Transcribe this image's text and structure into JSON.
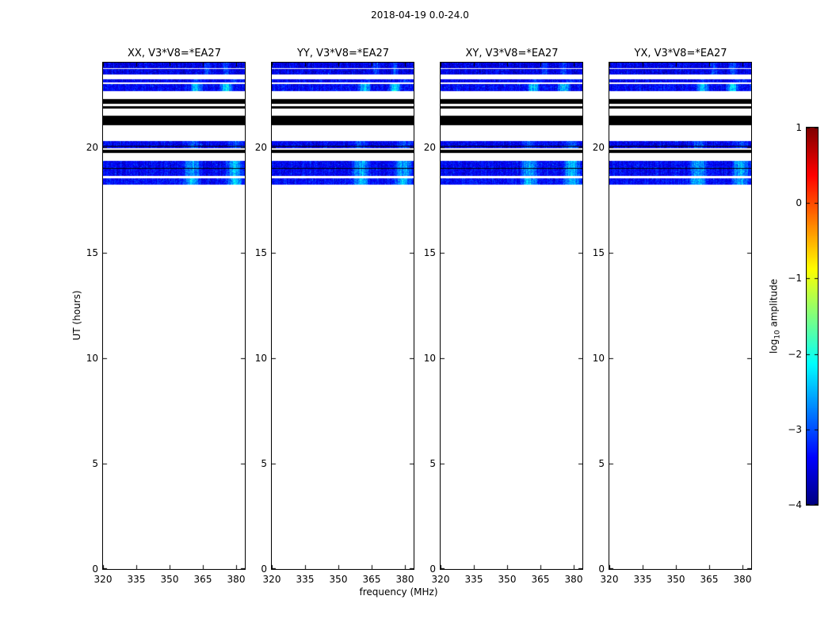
{
  "figure": {
    "title": "2018-04-19 0.0-24.0",
    "background_color": "#ffffff"
  },
  "axes": {
    "xlabel": "frequency (MHz)",
    "ylabel": "UT (hours)",
    "xticks": [
      320,
      335,
      350,
      365,
      380
    ],
    "yticks": [
      0,
      5,
      10,
      15,
      20
    ]
  },
  "panels": [
    {
      "title": "XX, V3*V8=*EA27"
    },
    {
      "title": "YY, V3*V8=*EA27"
    },
    {
      "title": "XY, V3*V8=*EA27"
    },
    {
      "title": "YX, V3*V8=*EA27"
    }
  ],
  "colorbar": {
    "label_parts": [
      "log",
      "10",
      " amplitude"
    ],
    "tick_labels": [
      "1",
      "0",
      "−1",
      "−2",
      "−3",
      "−4"
    ],
    "tick_values": [
      1,
      0,
      -1,
      -2,
      -3,
      -4
    ],
    "vmin": -4,
    "vmax": 1,
    "colormap": "jet"
  },
  "chart_data": {
    "type": "heatmap",
    "title": "2018-04-19 0.0-24.0",
    "subplot_titles": [
      "XX, V3*V8=*EA27",
      "YY, V3*V8=*EA27",
      "XY, V3*V8=*EA27",
      "YX, V3*V8=*EA27"
    ],
    "xlabel": "frequency (MHz)",
    "ylabel": "UT (hours)",
    "xlim": [
      320,
      384
    ],
    "ylim": [
      0,
      24
    ],
    "xticks": [
      320,
      335,
      350,
      365,
      380
    ],
    "yticks": [
      0,
      5,
      10,
      15,
      20
    ],
    "colorbar": {
      "label": "log10 amplitude",
      "range": [
        -4,
        1
      ],
      "colormap": "jet"
    },
    "note": "Data present only between about 18.2 and 24.0 UT hours; rest of each panel is blank (white). Bright cyan patches appear near 355-382 MHz. Black bands are flagged/zero data. Values are log10 amplitude.",
    "bands": [
      {
        "t0": 23.73,
        "t1": 24.0,
        "kind": "noise",
        "base": -3.5,
        "bright": [
          0.7,
          0.9
        ],
        "amp": 0.6
      },
      {
        "t0": 23.42,
        "t1": 23.7,
        "kind": "noise",
        "base": -3.5,
        "bright": [
          0.7,
          0.9
        ],
        "amp": 0.6
      },
      {
        "t0": 23.05,
        "t1": 23.22,
        "kind": "noise",
        "base": -3.45,
        "bright": [
          0.6,
          1.0
        ],
        "amp": 0.35
      },
      {
        "t0": 22.66,
        "t1": 22.97,
        "kind": "noise",
        "base": -3.4,
        "bright": [
          0.6,
          0.92
        ],
        "amp": 1.35
      },
      {
        "t0": 22.04,
        "t1": 22.26,
        "kind": "solid"
      },
      {
        "t0": 21.82,
        "t1": 21.95,
        "kind": "solid"
      },
      {
        "t0": 21.03,
        "t1": 21.5,
        "kind": "solid"
      },
      {
        "t0": 19.93,
        "t1": 20.28,
        "kind": "noise",
        "base": -3.45,
        "bright": [
          0.55,
          1.0
        ],
        "amp": 0.55
      },
      {
        "t0": 20.02,
        "t1": 20.07,
        "kind": "solid"
      },
      {
        "t0": 19.72,
        "t1": 19.88,
        "kind": "solid"
      },
      {
        "t0": 18.62,
        "t1": 19.36,
        "kind": "noise",
        "base": -3.4,
        "bright": [
          0.55,
          1.0
        ],
        "amp": 1.1
      },
      {
        "t0": 18.96,
        "t1": 19.02,
        "kind": "solid"
      },
      {
        "t0": 18.22,
        "t1": 18.5,
        "kind": "noise",
        "base": -3.35,
        "bright": [
          0.55,
          1.0
        ],
        "amp": 1.1
      }
    ]
  }
}
